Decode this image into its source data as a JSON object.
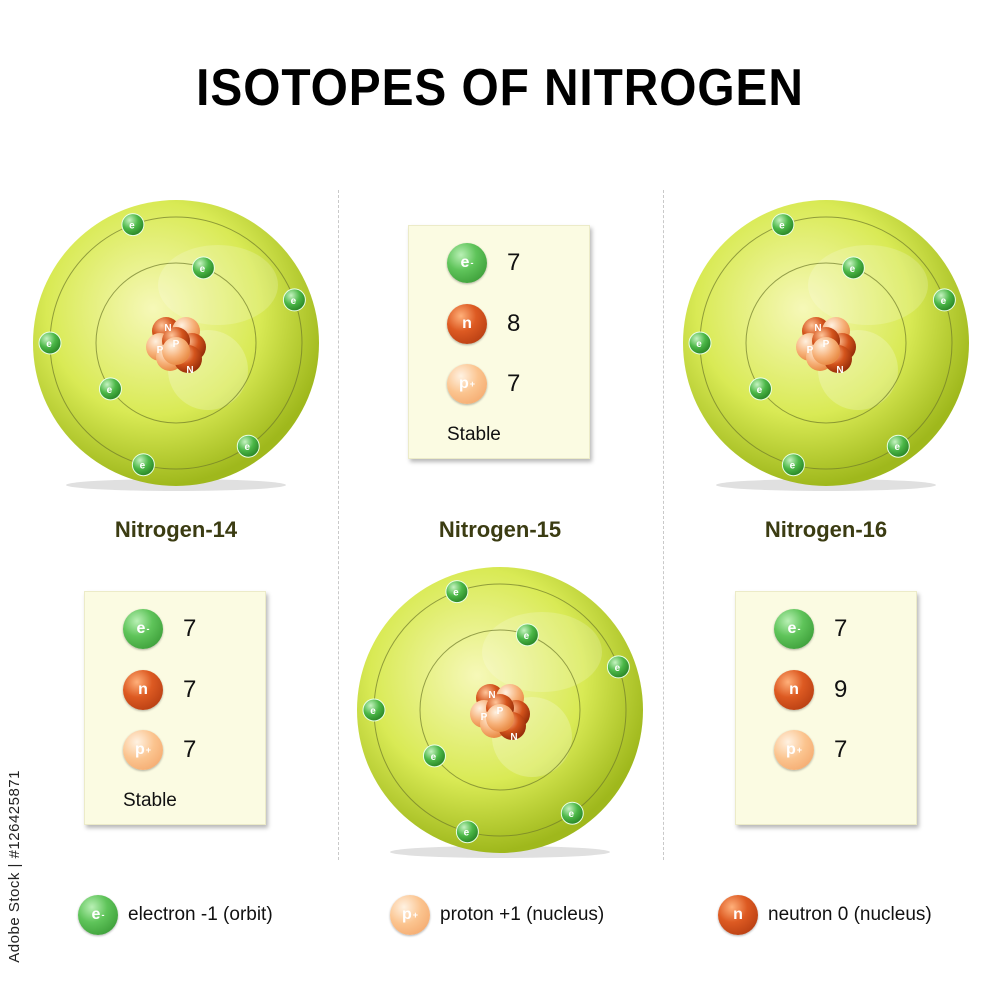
{
  "title": "ISOTOPES OF NITROGEN",
  "legend_symbols": {
    "electron": "e",
    "proton": "p",
    "neutron": "n",
    "charge_minus": "-",
    "charge_plus": "+"
  },
  "nucleus_letters": {
    "neutron": "N",
    "proton": "P"
  },
  "isotopes": [
    {
      "name": "Nitrogen-14",
      "electrons": "7",
      "neutrons": "7",
      "protons": "7",
      "stability": "Stable"
    },
    {
      "name": "Nitrogen-15",
      "electrons": "7",
      "neutrons": "8",
      "protons": "7",
      "stability": "Stable"
    },
    {
      "name": "Nitrogen-16",
      "electrons": "7",
      "neutrons": "9",
      "protons": "7",
      "stability": ""
    }
  ],
  "legend": [
    {
      "kind": "electron",
      "label": "electron -1 (orbit)"
    },
    {
      "kind": "proton",
      "label": "proton +1 (nucleus)"
    },
    {
      "kind": "neutron",
      "label": "neutron 0 (nucleus)"
    }
  ],
  "watermark": "Adobe Stock | #126425871",
  "colors": {
    "sphere_light": "#f6f8b8",
    "sphere_mid": "#d9ea55",
    "sphere_dark": "#9fb81c",
    "electron": "#4cb848",
    "neutron": "#d4541c",
    "proton": "#f7b27a",
    "card": "#fbfbe2",
    "label": "#3b3c12"
  }
}
